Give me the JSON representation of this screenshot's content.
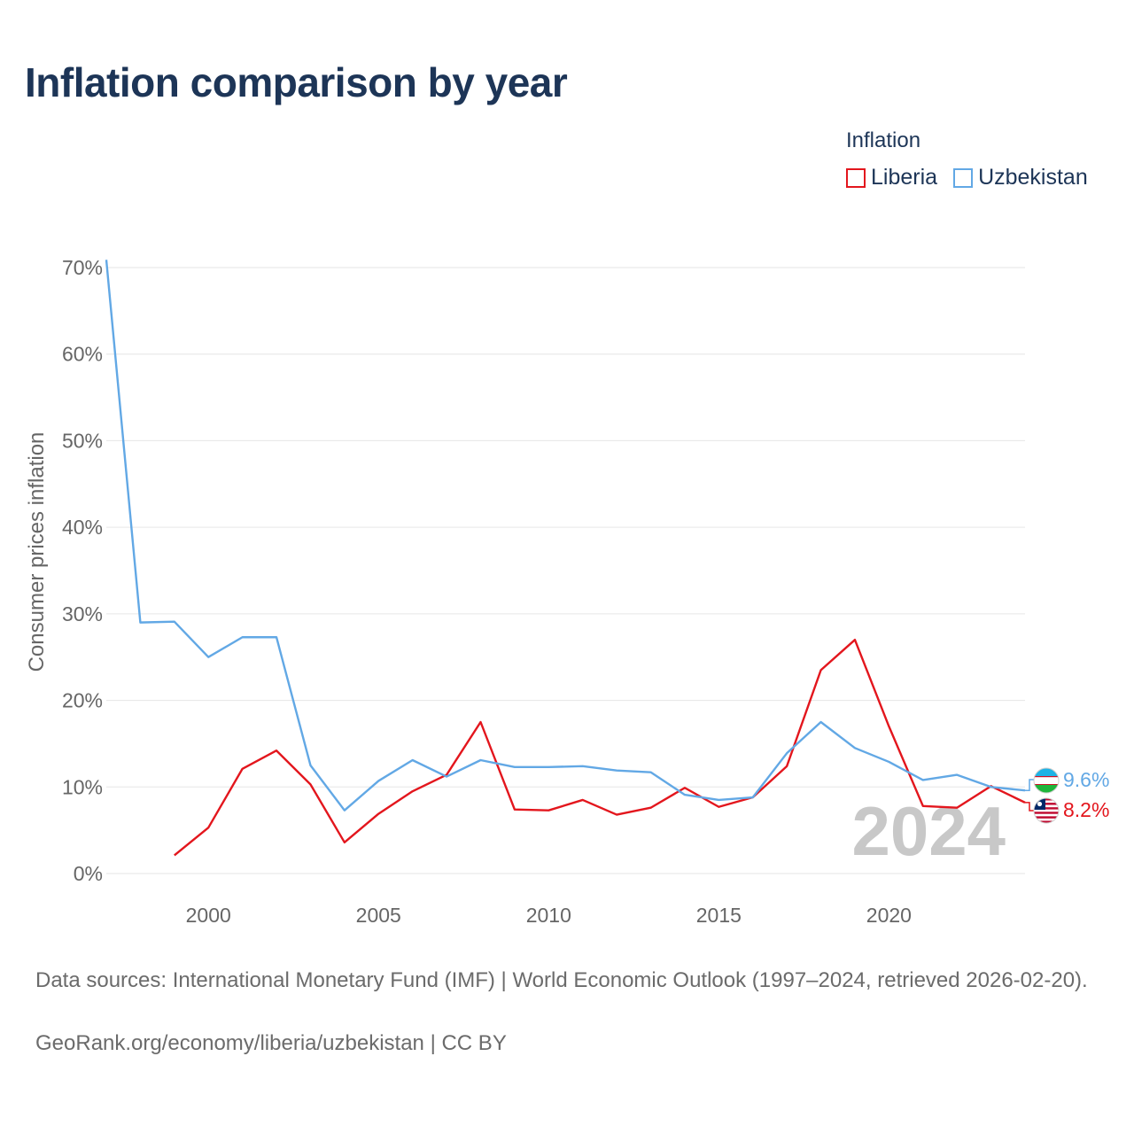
{
  "title": "Inflation comparison by year",
  "legend": {
    "title": "Inflation",
    "items": [
      {
        "label": "Liberia",
        "color": "#e3161d"
      },
      {
        "label": "Uzbekistan",
        "color": "#62a8e5"
      }
    ]
  },
  "chart_data": {
    "type": "line",
    "title": "Inflation comparison by year",
    "xlabel": "",
    "ylabel": "Consumer prices inflation",
    "xlim": [
      1997,
      2024
    ],
    "ylim": [
      0,
      70
    ],
    "y_ticks": [
      "0%",
      "10%",
      "20%",
      "30%",
      "40%",
      "50%",
      "60%",
      "70%"
    ],
    "x_ticks": [
      "2000",
      "2005",
      "2010",
      "2015",
      "2020"
    ],
    "year_watermark": "2024",
    "series": [
      {
        "name": "Liberia",
        "color": "#e3161d",
        "x": [
          1999,
          2000,
          2001,
          2002,
          2003,
          2004,
          2005,
          2006,
          2007,
          2008,
          2009,
          2010,
          2011,
          2012,
          2013,
          2014,
          2015,
          2016,
          2017,
          2018,
          2019,
          2020,
          2021,
          2022,
          2023,
          2024
        ],
        "values": [
          2.1,
          5.3,
          12.1,
          14.2,
          10.3,
          3.6,
          6.9,
          9.5,
          11.4,
          17.5,
          7.4,
          7.3,
          8.5,
          6.8,
          7.6,
          9.9,
          7.7,
          8.8,
          12.4,
          23.5,
          27.0,
          17.0,
          7.8,
          7.6,
          10.1,
          8.2
        ],
        "end_label": "8.2%"
      },
      {
        "name": "Uzbekistan",
        "color": "#62a8e5",
        "x": [
          1997,
          1998,
          1999,
          2000,
          2001,
          2002,
          2003,
          2004,
          2005,
          2006,
          2007,
          2008,
          2009,
          2010,
          2011,
          2012,
          2013,
          2014,
          2015,
          2016,
          2017,
          2018,
          2019,
          2020,
          2021,
          2022,
          2023,
          2024
        ],
        "values": [
          70.9,
          29.0,
          29.1,
          25.0,
          27.3,
          27.3,
          12.5,
          7.3,
          10.7,
          13.1,
          11.2,
          13.1,
          12.3,
          12.3,
          12.4,
          11.9,
          11.7,
          9.1,
          8.5,
          8.8,
          13.9,
          17.5,
          14.5,
          12.9,
          10.8,
          11.4,
          10.0,
          9.6
        ],
        "end_label": "9.6%"
      }
    ]
  },
  "footer": {
    "source": "Data sources: International Monetary Fund (IMF) | World Economic Outlook (1997–2024, retrieved 2026-02-20).",
    "credit": "GeoRank.org/economy/liberia/uzbekistan | CC BY"
  }
}
